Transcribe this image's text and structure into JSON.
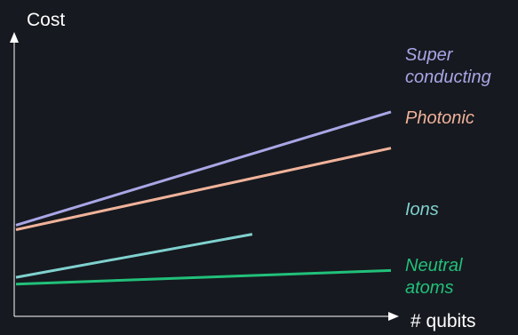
{
  "chart_data": {
    "type": "line",
    "title": "",
    "xlabel": "# qubits",
    "ylabel": "Cost",
    "xlim": [
      0,
      100
    ],
    "ylim": [
      0,
      100
    ],
    "grid": false,
    "legend": "inline-right",
    "series": [
      {
        "name": "Super\nconducting",
        "color": "#a9a6e6",
        "x": [
          0,
          100
        ],
        "y": [
          32,
          82
        ]
      },
      {
        "name": "Photonic",
        "color": "#f0b29a",
        "x": [
          0,
          100
        ],
        "y": [
          30,
          66
        ]
      },
      {
        "name": "Ions",
        "color": "#7fd1cf",
        "x": [
          0,
          63
        ],
        "y": [
          9,
          28
        ]
      },
      {
        "name": "Neutral\natoms",
        "color": "#21c07a",
        "x": [
          0,
          100
        ],
        "y": [
          6,
          12
        ]
      }
    ]
  },
  "colors": {
    "background": "#16191f",
    "axis": "#ffffff",
    "text": "#ffffff"
  }
}
